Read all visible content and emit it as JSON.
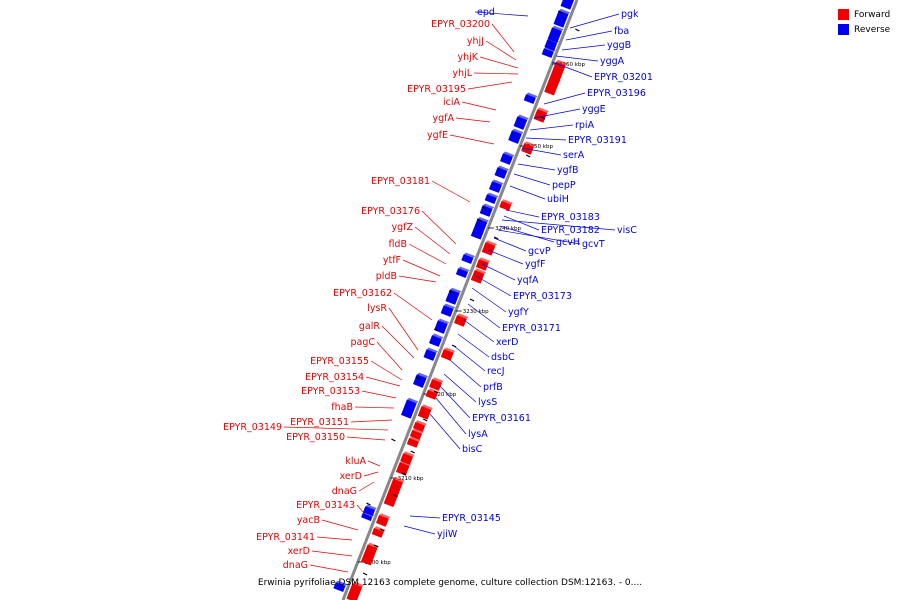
{
  "legend": [
    {
      "label": "Forward",
      "color": "#ee0000"
    },
    {
      "label": "Reverse",
      "color": "#0000ee"
    }
  ],
  "colors": {
    "forward": "#ee0000",
    "reverse": "#0000ee",
    "axis": "#888888"
  },
  "caption": "Erwinia pyrifoliae DSM 12163 complete genome, culture collection DSM:12163. - 0....",
  "kbp_ticks": [
    "3260 kbp",
    "3250 kbp",
    "3240 kbp",
    "3230 kbp",
    "3220 kbp",
    "3210 kbp",
    "3200 kbp"
  ],
  "forward_genes": [
    "EPYR_03200",
    "yhjJ",
    "yhjK",
    "yhjL",
    "EPYR_03195",
    "iciA",
    "ygfA",
    "ygfE",
    "EPYR_03181",
    "EPYR_03176",
    "ygfZ",
    "fldB",
    "ytfF",
    "pldB",
    "EPYR_03162",
    "lysR",
    "galR",
    "pagC",
    "EPYR_03155",
    "EPYR_03154",
    "EPYR_03153",
    "fhaB",
    "EPYR_03151",
    "EPYR_03149",
    "EPYR_03150",
    "kluA",
    "xerD",
    "dnaG",
    "EPYR_03143",
    "yacB",
    "EPYR_03141",
    "xerD",
    "dnaG"
  ],
  "reverse_genes": [
    "epd",
    "pgk",
    "fba",
    "yggB",
    "yggA",
    "EPYR_03201",
    "EPYR_03196",
    "yggE",
    "rpiA",
    "EPYR_03191",
    "serA",
    "ygfB",
    "pepP",
    "ubiH",
    "EPYR_03183",
    "EPYR_03182",
    "visC",
    "gcvH",
    "gcvT",
    "gcvP",
    "ygfF",
    "yqfA",
    "EPYR_03173",
    "ygfY",
    "EPYR_03171",
    "xerD",
    "dsbC",
    "recJ",
    "prfB",
    "lysS",
    "EPYR_03161",
    "lysA",
    "bisC",
    "EPYR_03145",
    "yjiW"
  ]
}
